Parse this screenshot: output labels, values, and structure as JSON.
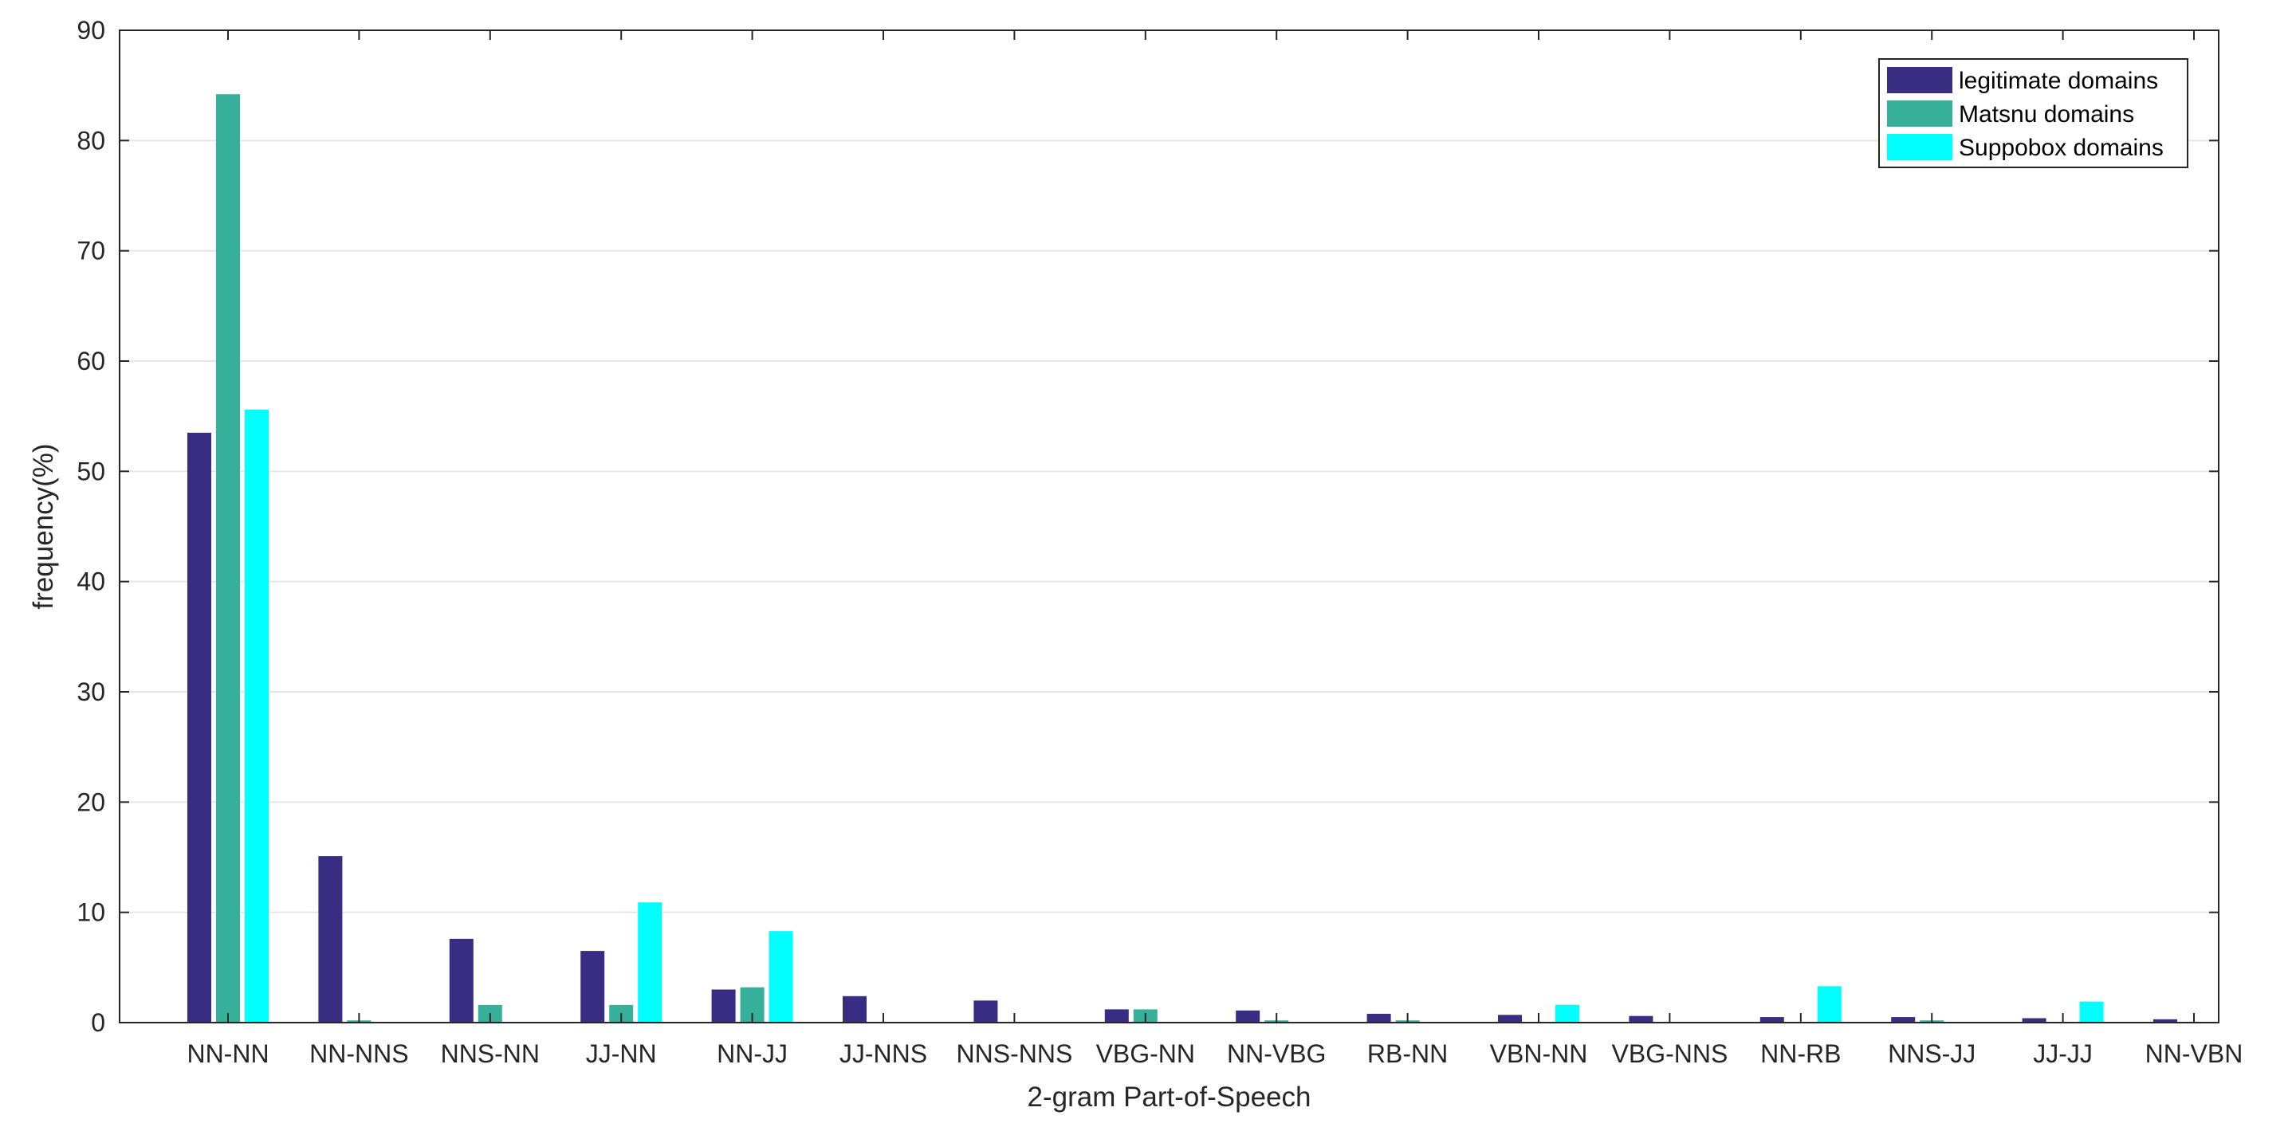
{
  "chart_data": {
    "type": "bar",
    "xlabel": "2-gram Part-of-Speech",
    "ylabel": "frequency(%)",
    "ylim": [
      0,
      90
    ],
    "yticks": [
      0,
      10,
      20,
      30,
      40,
      50,
      60,
      70,
      80,
      90
    ],
    "grid": "horizontal",
    "legend_position": "top-right",
    "categories": [
      "NN-NN",
      "NN-NNS",
      "NNS-NN",
      "JJ-NN",
      "NN-JJ",
      "JJ-NNS",
      "NNS-NNS",
      "VBG-NN",
      "NN-VBG",
      "RB-NN",
      "VBN-NN",
      "VBG-NNS",
      "NN-RB",
      "NNS-JJ",
      "JJ-JJ",
      "NN-VBN"
    ],
    "series": [
      {
        "name": "legitimate domains",
        "color": "#392c83",
        "values": [
          53.5,
          15.1,
          7.6,
          6.5,
          3.0,
          2.4,
          2.0,
          1.2,
          1.1,
          0.8,
          0.7,
          0.6,
          0.5,
          0.5,
          0.4,
          0.3
        ]
      },
      {
        "name": "Matsnu domains",
        "color": "#36b09a",
        "values": [
          84.2,
          0.2,
          1.6,
          1.6,
          3.2,
          0,
          0,
          1.2,
          0.2,
          0.2,
          0,
          0,
          0,
          0.2,
          0,
          0
        ]
      },
      {
        "name": "Suppobox domains",
        "color": "#00ffff",
        "values": [
          55.6,
          0,
          0,
          10.9,
          8.3,
          0,
          0,
          0,
          0,
          0,
          1.6,
          0,
          3.3,
          0,
          1.9,
          0
        ]
      }
    ]
  }
}
